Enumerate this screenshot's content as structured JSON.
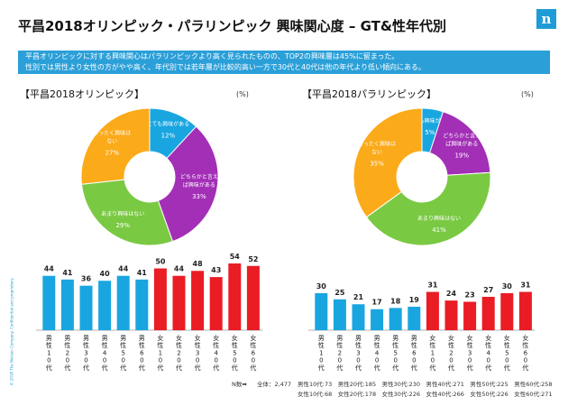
{
  "header": {
    "title": "平昌2018オリンピック・パラリンピック 興味関心度 – GT&性年代別",
    "logo_text": "n"
  },
  "summary": {
    "line1": "平昌オリンピックに対する興味関心はパラリンピックより高く見られたものの、TOP2の興味層は45%に留まった。",
    "line2": "性別では男性より女性の方がやや高く、年代別では若年層が比較的高い一方で30代と40代は他の年代より低い傾向にある。"
  },
  "side_note": "© 2018 The Nielsen Company. Confidential and proprietary.",
  "colors": {
    "blue": "#19a6e0",
    "purple": "#a32fb7",
    "green": "#7ac943",
    "orange": "#fbaa19",
    "red": "#ea1c24"
  },
  "chart_data": [
    {
      "type": "pie",
      "title": "【平昌2018オリンピック】",
      "unit": "(%)",
      "slices": [
        {
          "label": "とても興味がある",
          "value": 12,
          "color": "#19a6e0"
        },
        {
          "label": "どちらかと言えば興味がある",
          "value": 33,
          "color": "#a32fb7"
        },
        {
          "label": "あまり興味はない",
          "value": 29,
          "color": "#7ac943"
        },
        {
          "label": "まったく興味はない",
          "value": 27,
          "color": "#fbaa19"
        }
      ]
    },
    {
      "type": "pie",
      "title": "【平昌2018パラリンピック】",
      "unit": "(%)",
      "slices": [
        {
          "label": "とても興味がある",
          "value": 5,
          "color": "#19a6e0"
        },
        {
          "label": "どちらかと言えば興味がある",
          "value": 19,
          "color": "#a32fb7"
        },
        {
          "label": "あまり興味はない",
          "value": 41,
          "color": "#7ac943"
        },
        {
          "label": "まったく興味はない",
          "value": 35,
          "color": "#fbaa19"
        }
      ]
    },
    {
      "type": "bar",
      "title": "平昌2018オリンピック 性年代別",
      "categories": [
        "男性10代",
        "男性20代",
        "男性30代",
        "男性40代",
        "男性50代",
        "男性60代",
        "女性10代",
        "女性20代",
        "女性30代",
        "女性40代",
        "女性50代",
        "女性60代"
      ],
      "values": [
        44,
        41,
        36,
        40,
        44,
        41,
        50,
        44,
        48,
        43,
        54,
        52
      ],
      "colors": [
        "#19a6e0",
        "#19a6e0",
        "#19a6e0",
        "#19a6e0",
        "#19a6e0",
        "#19a6e0",
        "#ea1c24",
        "#ea1c24",
        "#ea1c24",
        "#ea1c24",
        "#ea1c24",
        "#ea1c24"
      ]
    },
    {
      "type": "bar",
      "title": "平昌2018パラリンピック 性年代別",
      "categories": [
        "男性10代",
        "男性20代",
        "男性30代",
        "男性40代",
        "男性50代",
        "男性60代",
        "女性10代",
        "女性20代",
        "女性30代",
        "女性40代",
        "女性50代",
        "女性60代"
      ],
      "values": [
        30,
        25,
        21,
        17,
        18,
        19,
        31,
        24,
        23,
        27,
        30,
        31
      ],
      "colors": [
        "#19a6e0",
        "#19a6e0",
        "#19a6e0",
        "#19a6e0",
        "#19a6e0",
        "#19a6e0",
        "#ea1c24",
        "#ea1c24",
        "#ea1c24",
        "#ea1c24",
        "#ea1c24",
        "#ea1c24"
      ]
    }
  ],
  "footer": {
    "n_label": "N数➡",
    "total": "全体：2,477",
    "row1": "男性10代:73　男性20代:185　男性30代:230　男性40代:271　男性50代:225　男性60代:258",
    "row2": "女性10代:68　女性20代:178　女性30代:226　女性40代:266　女性50代:226　女性60代:271"
  }
}
